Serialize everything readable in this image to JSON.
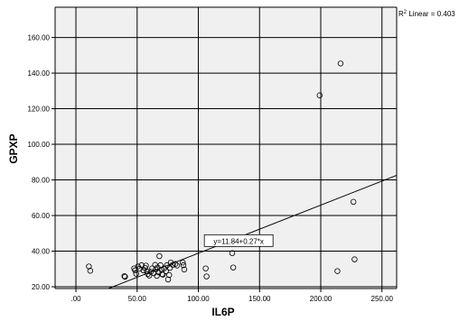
{
  "chart_data": {
    "type": "scatter",
    "xlabel": "IL6P",
    "ylabel": "GPXP",
    "xlim": [
      -17,
      262
    ],
    "ylim": [
      19,
      177
    ],
    "x_ticks": [
      0,
      50,
      100,
      150,
      200,
      250
    ],
    "x_tick_labels": [
      ".00",
      "50.00",
      "100.00",
      "150.00",
      "200.00",
      "250.00"
    ],
    "y_ticks": [
      20,
      40,
      60,
      80,
      100,
      120,
      140,
      160
    ],
    "y_tick_labels": [
      "20.00",
      "40.00",
      "60.00",
      "80.00",
      "100.00",
      "120.00",
      "140.00",
      "160.00"
    ],
    "grid": true,
    "background": "#f0f0f0",
    "series": [
      {
        "marker": "open-circle",
        "points": [
          [
            10.6,
            31.4
          ],
          [
            11.7,
            29
          ],
          [
            39.6,
            26
          ],
          [
            40.1,
            25.6
          ],
          [
            47.6,
            30.3
          ],
          [
            48.3,
            29.2
          ],
          [
            49.2,
            27.3
          ],
          [
            50.7,
            31.4
          ],
          [
            52.1,
            30.1
          ],
          [
            53.6,
            32.1
          ],
          [
            55.1,
            29.2
          ],
          [
            56.5,
            30.6
          ],
          [
            57.2,
            31.9
          ],
          [
            58,
            28.6
          ],
          [
            58.7,
            27.1
          ],
          [
            59.9,
            26.3
          ],
          [
            61.1,
            28.4
          ],
          [
            62.3,
            30.3
          ],
          [
            63.6,
            27.6
          ],
          [
            64.7,
            32.3
          ],
          [
            65.2,
            29.7
          ],
          [
            66.1,
            26.1
          ],
          [
            66.7,
            30.8
          ],
          [
            67.5,
            28.1
          ],
          [
            68.2,
            37.2
          ],
          [
            69.1,
            32.1
          ],
          [
            69.9,
            29.5
          ],
          [
            70.4,
            27.1
          ],
          [
            71,
            26.8
          ],
          [
            72,
            30.3
          ],
          [
            73.5,
            28.8
          ],
          [
            74.4,
            32.1
          ],
          [
            75.3,
            24.1
          ],
          [
            76.2,
            26.6
          ],
          [
            76.8,
            30.6
          ],
          [
            77.5,
            33.6
          ],
          [
            79.1,
            32.3
          ],
          [
            81.2,
            32.8
          ],
          [
            82.6,
            31.9
          ],
          [
            87.3,
            33.6
          ],
          [
            87.8,
            32.1
          ],
          [
            88.5,
            29.7
          ],
          [
            106,
            30.3
          ],
          [
            106.7,
            25.8
          ],
          [
            127.7,
            38.9
          ],
          [
            128.5,
            30.8
          ],
          [
            199.1,
            127.5
          ],
          [
            213.6,
            28.8
          ],
          [
            216.2,
            145.4
          ],
          [
            226.7,
            67.7
          ],
          [
            227.6,
            35.4
          ]
        ]
      }
    ],
    "fit_line": {
      "intercept": 11.84,
      "slope": 0.27,
      "label": "y=11.84+0.27*x"
    },
    "r2_label_prefix": "R",
    "r2_label_sup": "2",
    "r2_label_suffix": " Linear = 0.403"
  }
}
